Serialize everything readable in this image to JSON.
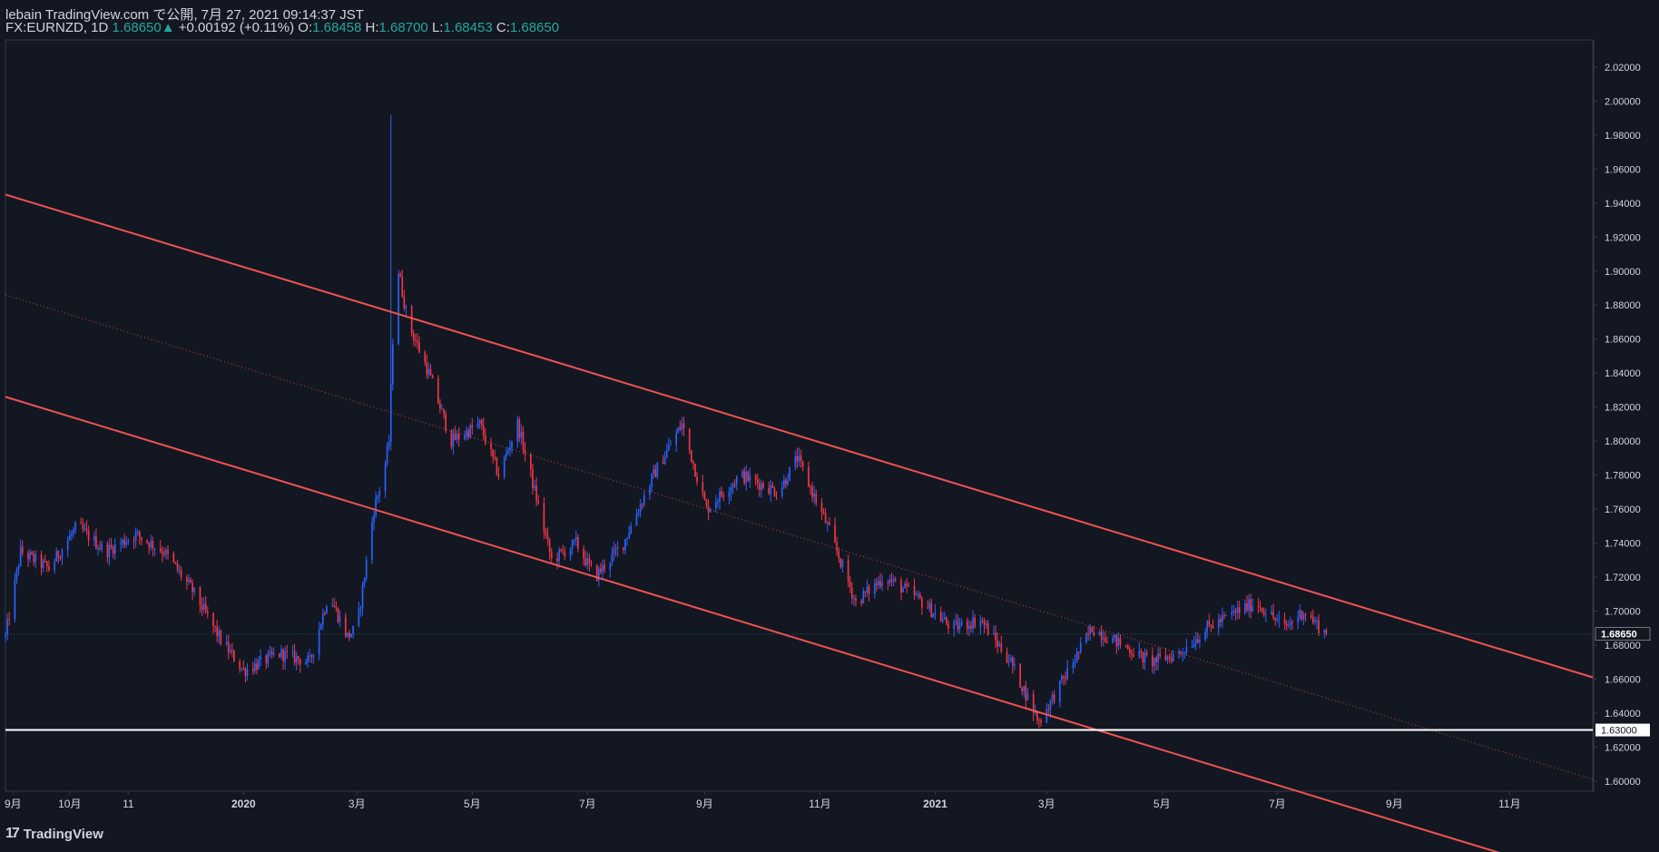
{
  "header": {
    "line1": "lebain TradingView.com で公開, 7月 27, 2021 09:14:37 JST",
    "symbol": "FX:EURNZD, 1D",
    "last": "1.68650",
    "change": "+0.00192 (+0.11%)",
    "o_label": "O:",
    "o": "1.68458",
    "h_label": "H:",
    "h": "1.68700",
    "l_label": "L:",
    "l": "1.68453",
    "c_label": "C:",
    "c": "1.68650"
  },
  "footer": {
    "brand": "TradingView",
    "logo_mark": "17"
  },
  "colors": {
    "bg": "#131722",
    "up": "#2962ff",
    "down": "#f23645",
    "line": "#f05350",
    "grid": "#363a45"
  },
  "chart_data": {
    "type": "candlestick",
    "symbol": "FX:EURNZD",
    "interval": "1D",
    "x_tick_labels": [
      "9月",
      "10月",
      "11",
      "2020",
      "3月",
      "5月",
      "7月",
      "9月",
      "11月",
      "2021",
      "3月",
      "5月",
      "7月",
      "9月",
      "11月"
    ],
    "x_tick_dates": [
      "2019-09",
      "2019-10",
      "2019-11",
      "2020-01",
      "2020-03",
      "2020-05",
      "2020-07",
      "2020-09",
      "2020-11",
      "2021-01",
      "2021-03",
      "2021-05",
      "2021-07",
      "2021-09",
      "2021-11"
    ],
    "y_ticks": [
      "2.02000",
      "2.00000",
      "1.98000",
      "1.96000",
      "1.94000",
      "1.92000",
      "1.90000",
      "1.88000",
      "1.86000",
      "1.84000",
      "1.82000",
      "1.80000",
      "1.78000",
      "1.76000",
      "1.74000",
      "1.72000",
      "1.70000",
      "1.68000",
      "1.66000",
      "1.64000",
      "1.62000",
      "1.60000"
    ],
    "ylim": [
      1.594,
      2.036
    ],
    "xlim": [
      "2019-08-28",
      "2021-12-15"
    ],
    "price_path": [
      {
        "date": "2019-08-28",
        "value": 1.685
      },
      {
        "date": "2019-09-05",
        "value": 1.735
      },
      {
        "date": "2019-09-20",
        "value": 1.725
      },
      {
        "date": "2019-10-05",
        "value": 1.75
      },
      {
        "date": "2019-10-20",
        "value": 1.735
      },
      {
        "date": "2019-11-05",
        "value": 1.745
      },
      {
        "date": "2019-11-20",
        "value": 1.735
      },
      {
        "date": "2019-12-05",
        "value": 1.712
      },
      {
        "date": "2019-12-20",
        "value": 1.683
      },
      {
        "date": "2020-01-01",
        "value": 1.665
      },
      {
        "date": "2020-01-20",
        "value": 1.675
      },
      {
        "date": "2020-02-05",
        "value": 1.67
      },
      {
        "date": "2020-02-15",
        "value": 1.71
      },
      {
        "date": "2020-02-25",
        "value": 1.685
      },
      {
        "date": "2020-03-01",
        "value": 1.69
      },
      {
        "date": "2020-03-10",
        "value": 1.76
      },
      {
        "date": "2020-03-15",
        "value": 1.78
      },
      {
        "date": "2020-03-18",
        "value": 1.8
      },
      {
        "date": "2020-03-20",
        "value": 1.86
      },
      {
        "date": "2020-03-23",
        "value": 1.9
      },
      {
        "date": "2020-03-28",
        "value": 1.87
      },
      {
        "date": "2020-04-08",
        "value": 1.84
      },
      {
        "date": "2020-04-20",
        "value": 1.8
      },
      {
        "date": "2020-05-05",
        "value": 1.81
      },
      {
        "date": "2020-05-15",
        "value": 1.78
      },
      {
        "date": "2020-05-25",
        "value": 1.81
      },
      {
        "date": "2020-06-01",
        "value": 1.78
      },
      {
        "date": "2020-06-12",
        "value": 1.73
      },
      {
        "date": "2020-06-25",
        "value": 1.74
      },
      {
        "date": "2020-07-05",
        "value": 1.72
      },
      {
        "date": "2020-07-20",
        "value": 1.74
      },
      {
        "date": "2020-08-05",
        "value": 1.78
      },
      {
        "date": "2020-08-20",
        "value": 1.81
      },
      {
        "date": "2020-09-02",
        "value": 1.76
      },
      {
        "date": "2020-09-20",
        "value": 1.78
      },
      {
        "date": "2020-10-10",
        "value": 1.77
      },
      {
        "date": "2020-10-20",
        "value": 1.79
      },
      {
        "date": "2020-11-05",
        "value": 1.75
      },
      {
        "date": "2020-11-20",
        "value": 1.705
      },
      {
        "date": "2020-12-05",
        "value": 1.72
      },
      {
        "date": "2020-12-20",
        "value": 1.71
      },
      {
        "date": "2021-01-10",
        "value": 1.69
      },
      {
        "date": "2021-01-25",
        "value": 1.695
      },
      {
        "date": "2021-02-10",
        "value": 1.67
      },
      {
        "date": "2021-02-25",
        "value": 1.635
      },
      {
        "date": "2021-03-10",
        "value": 1.66
      },
      {
        "date": "2021-03-25",
        "value": 1.69
      },
      {
        "date": "2021-04-10",
        "value": 1.68
      },
      {
        "date": "2021-04-25",
        "value": 1.67
      },
      {
        "date": "2021-05-10",
        "value": 1.675
      },
      {
        "date": "2021-05-25",
        "value": 1.69
      },
      {
        "date": "2021-06-10",
        "value": 1.7
      },
      {
        "date": "2021-06-20",
        "value": 1.705
      },
      {
        "date": "2021-07-05",
        "value": 1.69
      },
      {
        "date": "2021-07-15",
        "value": 1.7
      },
      {
        "date": "2021-07-27",
        "value": 1.6865
      }
    ],
    "trendlines": [
      {
        "name": "upper-channel",
        "style": "solid",
        "from": {
          "date": "2019-08-28",
          "value": 1.945
        },
        "to": {
          "date": "2021-12-15",
          "value": 1.661
        }
      },
      {
        "name": "mid-channel",
        "style": "dotted",
        "from": {
          "date": "2019-08-28",
          "value": 1.886
        },
        "to": {
          "date": "2021-12-15",
          "value": 1.601
        }
      },
      {
        "name": "lower-channel",
        "style": "solid",
        "from": {
          "date": "2019-08-28",
          "value": 1.826
        },
        "to": {
          "date": "2021-12-15",
          "value": 1.541
        }
      }
    ],
    "horizontal_levels": [
      {
        "name": "support",
        "value": 1.63,
        "label": "1.63000"
      }
    ],
    "current_price": {
      "value": 1.6865,
      "label": "1.68650"
    }
  }
}
